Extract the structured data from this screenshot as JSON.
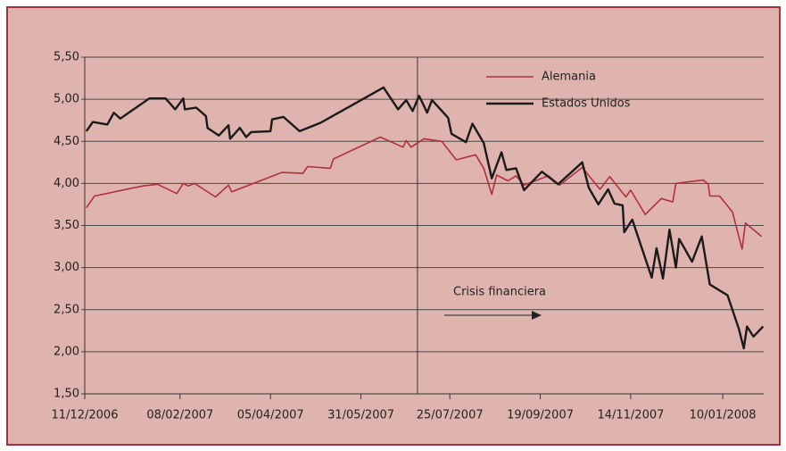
{
  "chart_data": {
    "type": "line",
    "xlim": [
      "11/12/2006",
      "06/02/2008"
    ],
    "xticks": [
      "11/12/2006",
      "08/02/2007",
      "05/04/2007",
      "31/05/2007",
      "25/07/2007",
      "19/09/2007",
      "14/11/2007",
      "10/01/2008"
    ],
    "ylim": [
      1.5,
      5.5
    ],
    "yticks": [
      {
        "value": 1.5,
        "label": "1,50"
      },
      {
        "value": 2,
        "label": "2,00"
      },
      {
        "value": 2.5,
        "label": "2,50"
      },
      {
        "value": 3,
        "label": "3,00"
      },
      {
        "value": 3.5,
        "label": "3,50"
      },
      {
        "value": 4,
        "label": "4,00"
      },
      {
        "value": 4.5,
        "label": "4,50"
      },
      {
        "value": 5,
        "label": "5,00"
      },
      {
        "value": 5.5,
        "label": "5,50"
      }
    ],
    "grid": true,
    "legend": "upper right",
    "vline": "05/07/2007",
    "annotation": "Crisis financiera",
    "series": [
      {
        "name": "Alemania",
        "color": "#b0303f",
        "x": [
          "12/12/2006",
          "17/12/2006",
          "16/01/2007",
          "25/01/2007",
          "06/02/2007",
          "10/02/2007",
          "13/02/2007",
          "17/02/2007",
          "02/03/2007",
          "10/03/2007",
          "12/03/2007",
          "12/04/2007",
          "25/04/2007",
          "28/04/2007",
          "12/05/2007",
          "14/05/2007",
          "12/06/2007",
          "26/06/2007",
          "28/06/2007",
          "01/07/2007",
          "09/07/2007",
          "20/07/2007",
          "29/07/2007",
          "10/08/2007",
          "15/08/2007",
          "20/08/2007",
          "23/08/2007",
          "30/08/2007",
          "04/09/2007",
          "09/09/2007",
          "24/09/2007",
          "01/10/2007",
          "15/10/2007",
          "26/10/2007",
          "01/11/2007",
          "11/11/2007",
          "14/11/2007",
          "23/11/2007",
          "03/12/2007",
          "10/12/2007",
          "12/12/2007",
          "29/12/2007",
          "01/01/2008",
          "02/01/2008",
          "08/01/2008",
          "16/01/2008",
          "22/01/2008",
          "24/01/2008",
          "03/02/2008"
        ],
        "values": [
          3.71,
          3.85,
          3.97,
          3.99,
          3.88,
          4.0,
          3.97,
          4.0,
          3.84,
          3.98,
          3.9,
          4.13,
          4.12,
          4.2,
          4.18,
          4.29,
          4.55,
          4.43,
          4.51,
          4.43,
          4.53,
          4.5,
          4.28,
          4.34,
          4.18,
          3.87,
          4.1,
          4.03,
          4.09,
          3.98,
          4.09,
          3.98,
          4.19,
          3.93,
          4.08,
          3.84,
          3.92,
          3.63,
          3.82,
          3.78,
          4.0,
          4.04,
          3.99,
          3.85,
          3.85,
          3.66,
          3.22,
          3.53,
          3.37
        ]
      },
      {
        "name": "Estados Unidos",
        "color": "#1a1a1a",
        "x": [
          "12/12/2006",
          "16/12/2006",
          "25/12/2006",
          "29/12/2006",
          "02/01/2007",
          "20/01/2007",
          "30/01/2007",
          "05/02/2007",
          "10/02/2007",
          "11/02/2007",
          "18/02/2007",
          "24/02/2007",
          "25/02/2007",
          "04/03/2007",
          "10/03/2007",
          "11/03/2007",
          "17/03/2007",
          "21/03/2007",
          "24/03/2007",
          "05/04/2007",
          "06/04/2007",
          "13/04/2007",
          "23/04/2007",
          "06/05/2007",
          "14/06/2007",
          "23/06/2007",
          "28/06/2007",
          "02/07/2007",
          "06/07/2007",
          "11/07/2007",
          "14/07/2007",
          "24/07/2007",
          "26/07/2007",
          "04/08/2007",
          "08/08/2007",
          "15/08/2007",
          "20/08/2007",
          "26/08/2007",
          "29/08/2007",
          "04/09/2007",
          "09/09/2007",
          "20/09/2007",
          "30/09/2007",
          "15/10/2007",
          "19/10/2007",
          "25/10/2007",
          "31/10/2007",
          "04/11/2007",
          "09/11/2007",
          "10/11/2007",
          "15/11/2007",
          "27/11/2007",
          "30/11/2007",
          "04/12/2007",
          "08/12/2007",
          "12/12/2007",
          "14/12/2007",
          "22/12/2007",
          "28/12/2007",
          "02/01/2008",
          "13/01/2008",
          "20/01/2008",
          "23/01/2008",
          "25/01/2008",
          "29/01/2008",
          "04/02/2008"
        ],
        "values": [
          4.62,
          4.73,
          4.7,
          4.84,
          4.77,
          5.01,
          5.01,
          4.88,
          5.01,
          4.88,
          4.9,
          4.8,
          4.66,
          4.57,
          4.69,
          4.53,
          4.66,
          4.55,
          4.61,
          4.62,
          4.76,
          4.79,
          4.62,
          4.72,
          5.14,
          4.88,
          4.99,
          4.86,
          5.04,
          4.84,
          4.99,
          4.78,
          4.59,
          4.49,
          4.71,
          4.48,
          4.06,
          4.37,
          4.16,
          4.18,
          3.92,
          4.14,
          3.99,
          4.25,
          3.95,
          3.75,
          3.93,
          3.76,
          3.74,
          3.42,
          3.57,
          2.88,
          3.23,
          2.87,
          3.45,
          3.0,
          3.34,
          3.07,
          3.37,
          2.8,
          2.67,
          2.27,
          2.04,
          2.3,
          2.18,
          2.3
        ]
      }
    ]
  }
}
